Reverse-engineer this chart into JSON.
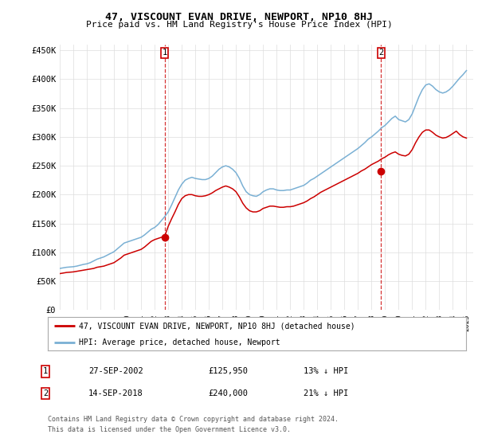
{
  "title": "47, VISCOUNT EVAN DRIVE, NEWPORT, NP10 8HJ",
  "subtitle": "Price paid vs. HM Land Registry's House Price Index (HPI)",
  "ylabel_ticks": [
    "£0",
    "£50K",
    "£100K",
    "£150K",
    "£200K",
    "£250K",
    "£300K",
    "£350K",
    "£400K",
    "£450K"
  ],
  "ylim": [
    0,
    460000
  ],
  "xlim_start": 1995.0,
  "xlim_end": 2025.5,
  "sale1_x": 2002.74,
  "sale1_y": 125950,
  "sale2_x": 2018.71,
  "sale2_y": 240000,
  "sale1_label": "27-SEP-2002",
  "sale1_price": "£125,950",
  "sale1_hpi": "13% ↓ HPI",
  "sale2_label": "14-SEP-2018",
  "sale2_price": "£240,000",
  "sale2_hpi": "21% ↓ HPI",
  "legend_line1": "47, VISCOUNT EVAN DRIVE, NEWPORT, NP10 8HJ (detached house)",
  "legend_line2": "HPI: Average price, detached house, Newport",
  "footer1": "Contains HM Land Registry data © Crown copyright and database right 2024.",
  "footer2": "This data is licensed under the Open Government Licence v3.0.",
  "red_color": "#cc0000",
  "blue_color": "#7ab0d4",
  "bg_color": "#ffffff",
  "grid_color": "#dddddd",
  "hpi_years": [
    1995.0,
    1995.25,
    1995.5,
    1995.75,
    1996.0,
    1996.25,
    1996.5,
    1996.75,
    1997.0,
    1997.25,
    1997.5,
    1997.75,
    1998.0,
    1998.25,
    1998.5,
    1998.75,
    1999.0,
    1999.25,
    1999.5,
    1999.75,
    2000.0,
    2000.25,
    2000.5,
    2000.75,
    2001.0,
    2001.25,
    2001.5,
    2001.75,
    2002.0,
    2002.25,
    2002.5,
    2002.75,
    2003.0,
    2003.25,
    2003.5,
    2003.75,
    2004.0,
    2004.25,
    2004.5,
    2004.75,
    2005.0,
    2005.25,
    2005.5,
    2005.75,
    2006.0,
    2006.25,
    2006.5,
    2006.75,
    2007.0,
    2007.25,
    2007.5,
    2007.75,
    2008.0,
    2008.25,
    2008.5,
    2008.75,
    2009.0,
    2009.25,
    2009.5,
    2009.75,
    2010.0,
    2010.25,
    2010.5,
    2010.75,
    2011.0,
    2011.25,
    2011.5,
    2011.75,
    2012.0,
    2012.25,
    2012.5,
    2012.75,
    2013.0,
    2013.25,
    2013.5,
    2013.75,
    2014.0,
    2014.25,
    2014.5,
    2014.75,
    2015.0,
    2015.25,
    2015.5,
    2015.75,
    2016.0,
    2016.25,
    2016.5,
    2016.75,
    2017.0,
    2017.25,
    2017.5,
    2017.75,
    2018.0,
    2018.25,
    2018.5,
    2018.75,
    2019.0,
    2019.25,
    2019.5,
    2019.75,
    2020.0,
    2020.25,
    2020.5,
    2020.75,
    2021.0,
    2021.25,
    2021.5,
    2021.75,
    2022.0,
    2022.25,
    2022.5,
    2022.75,
    2023.0,
    2023.25,
    2023.5,
    2023.75,
    2024.0,
    2024.25,
    2024.5,
    2024.75,
    2025.0
  ],
  "hpi_vals": [
    72000,
    73000,
    74000,
    74500,
    75000,
    76000,
    77500,
    79000,
    80000,
    82000,
    85000,
    88000,
    90000,
    92000,
    95000,
    98000,
    101000,
    106000,
    111000,
    116000,
    118000,
    120000,
    122000,
    124000,
    126000,
    130000,
    135000,
    140000,
    143000,
    148000,
    155000,
    162000,
    170000,
    182000,
    195000,
    208000,
    218000,
    225000,
    228000,
    230000,
    228000,
    227000,
    226000,
    226000,
    228000,
    232000,
    238000,
    244000,
    248000,
    250000,
    248000,
    244000,
    238000,
    228000,
    215000,
    205000,
    200000,
    198000,
    197000,
    200000,
    205000,
    208000,
    210000,
    210000,
    208000,
    207000,
    207000,
    208000,
    208000,
    210000,
    212000,
    214000,
    216000,
    220000,
    225000,
    228000,
    232000,
    236000,
    240000,
    244000,
    248000,
    252000,
    256000,
    260000,
    264000,
    268000,
    272000,
    276000,
    280000,
    285000,
    290000,
    296000,
    300000,
    305000,
    310000,
    316000,
    320000,
    326000,
    332000,
    336000,
    330000,
    328000,
    326000,
    330000,
    340000,
    355000,
    370000,
    382000,
    390000,
    392000,
    388000,
    382000,
    378000,
    376000,
    378000,
    382000,
    388000,
    395000,
    402000,
    408000,
    415000
  ],
  "pp_years": [
    1995.0,
    1995.25,
    1995.5,
    1995.75,
    1996.0,
    1996.25,
    1996.5,
    1996.75,
    1997.0,
    1997.25,
    1997.5,
    1997.75,
    1998.0,
    1998.25,
    1998.5,
    1998.75,
    1999.0,
    1999.25,
    1999.5,
    1999.75,
    2000.0,
    2000.25,
    2000.5,
    2000.75,
    2001.0,
    2001.25,
    2001.5,
    2001.75,
    2002.0,
    2002.25,
    2002.5,
    2002.75,
    2003.0,
    2003.25,
    2003.5,
    2003.75,
    2004.0,
    2004.25,
    2004.5,
    2004.75,
    2005.0,
    2005.25,
    2005.5,
    2005.75,
    2006.0,
    2006.25,
    2006.5,
    2006.75,
    2007.0,
    2007.25,
    2007.5,
    2007.75,
    2008.0,
    2008.25,
    2008.5,
    2008.75,
    2009.0,
    2009.25,
    2009.5,
    2009.75,
    2010.0,
    2010.25,
    2010.5,
    2010.75,
    2011.0,
    2011.25,
    2011.5,
    2011.75,
    2012.0,
    2012.25,
    2012.5,
    2012.75,
    2013.0,
    2013.25,
    2013.5,
    2013.75,
    2014.0,
    2014.25,
    2014.5,
    2014.75,
    2015.0,
    2015.25,
    2015.5,
    2015.75,
    2016.0,
    2016.25,
    2016.5,
    2016.75,
    2017.0,
    2017.25,
    2017.5,
    2017.75,
    2018.0,
    2018.25,
    2018.5,
    2018.75,
    2019.0,
    2019.25,
    2019.5,
    2019.75,
    2020.0,
    2020.25,
    2020.5,
    2020.75,
    2021.0,
    2021.25,
    2021.5,
    2021.75,
    2022.0,
    2022.25,
    2022.5,
    2022.75,
    2023.0,
    2023.25,
    2023.5,
    2023.75,
    2024.0,
    2024.25,
    2024.5,
    2024.75,
    2025.0
  ],
  "pp_vals": [
    63000,
    64000,
    65000,
    65500,
    66000,
    67000,
    68000,
    69000,
    70000,
    71000,
    72000,
    74000,
    75000,
    76000,
    78000,
    80000,
    82000,
    86000,
    90000,
    95000,
    97000,
    99000,
    101000,
    103000,
    105000,
    109000,
    114000,
    119000,
    122000,
    124000,
    126000,
    128000,
    145000,
    158000,
    170000,
    183000,
    193000,
    198000,
    200000,
    200000,
    198000,
    197000,
    197000,
    198000,
    200000,
    203000,
    207000,
    210000,
    213000,
    215000,
    213000,
    210000,
    205000,
    196000,
    185000,
    177000,
    172000,
    170000,
    170000,
    172000,
    176000,
    178000,
    180000,
    180000,
    179000,
    178000,
    178000,
    179000,
    179000,
    180000,
    182000,
    184000,
    186000,
    189000,
    193000,
    196000,
    200000,
    204000,
    207000,
    210000,
    213000,
    216000,
    219000,
    222000,
    225000,
    228000,
    231000,
    234000,
    237000,
    241000,
    244000,
    248000,
    252000,
    255000,
    258000,
    262000,
    265000,
    269000,
    272000,
    274000,
    270000,
    268000,
    267000,
    270000,
    278000,
    290000,
    300000,
    308000,
    312000,
    312000,
    308000,
    303000,
    300000,
    298000,
    299000,
    302000,
    306000,
    310000,
    304000,
    300000,
    298000
  ]
}
